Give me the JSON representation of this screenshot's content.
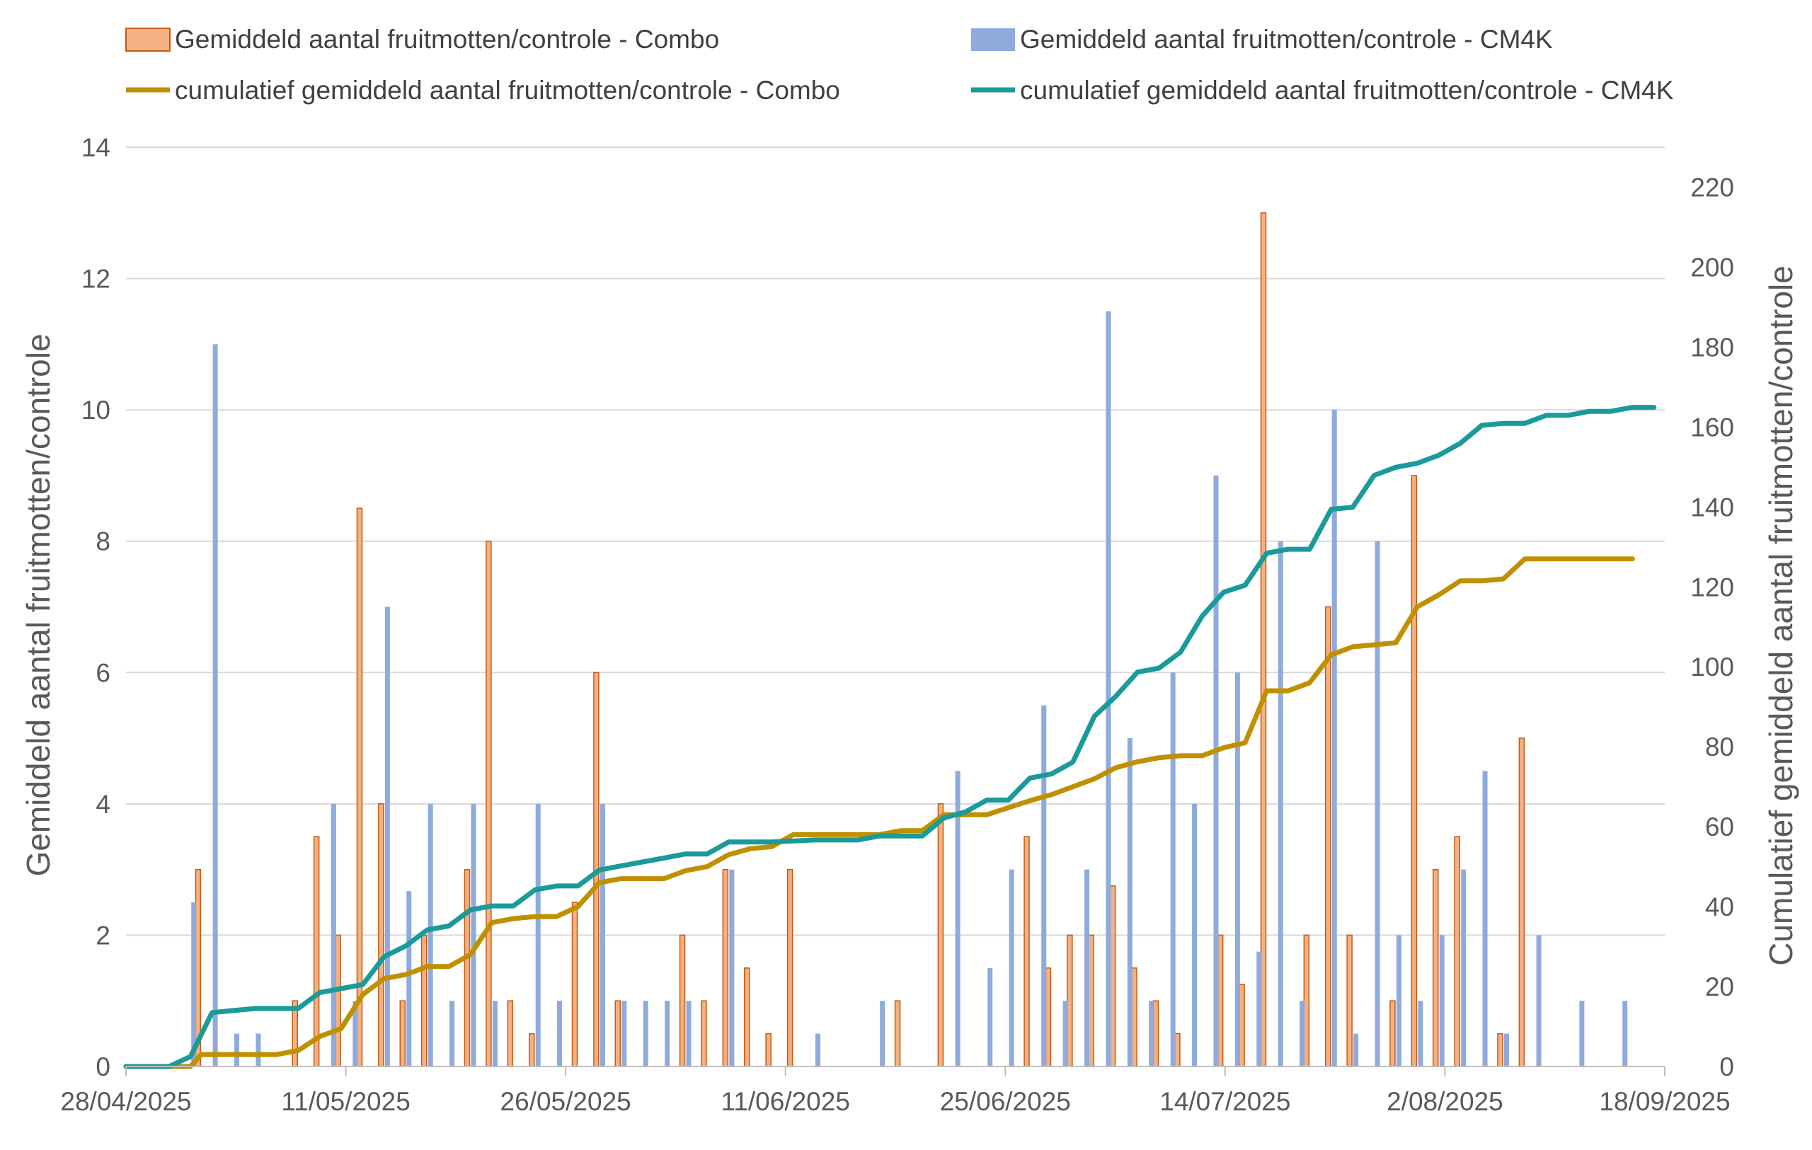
{
  "chart_data": {
    "type": "bar+line",
    "title": "",
    "colors": {
      "combo_bar": "#f4b183",
      "combo_bar_edge": "#c55a11",
      "cm4k_bar": "#8faadc",
      "combo_line": "#bf9000",
      "cm4k_line": "#1a9a9a"
    },
    "legend": {
      "position": "top",
      "items": [
        {
          "key": "combo_bar",
          "label": "Gemiddeld aantal fruitmotten/controle - Combo"
        },
        {
          "key": "cm4k_bar",
          "label": "Gemiddeld aantal fruitmotten/controle - CM4K"
        },
        {
          "key": "combo_line",
          "label": "cumulatief gemiddeld aantal fruitmotten/controle - Combo"
        },
        {
          "key": "cm4k_line",
          "label": "cumulatief gemiddeld aantal fruitmotten/controle - CM4K"
        }
      ]
    },
    "y_left": {
      "label": "Gemiddeld aantal fruitmotten/controle",
      "min": 0,
      "max": 14,
      "ticks": [
        "0",
        "2",
        "4",
        "6",
        "8",
        "10",
        "12",
        "14"
      ]
    },
    "y_right": {
      "label": "Cumulatief gemiddeld aantal fruitmotten/controle",
      "min": 0,
      "max": 230,
      "ticks": [
        "0",
        "20",
        "40",
        "60",
        "80",
        "100",
        "120",
        "140",
        "160",
        "180",
        "200",
        "220"
      ]
    },
    "x_axis": {
      "min_day": 0,
      "max_day": 143,
      "tick_labels": [
        "28/04/2025",
        "11/05/2025",
        "26/05/2025",
        "11/06/2025",
        "25/06/2025",
        "14/07/2025",
        "2/08/2025",
        "18/09/2025"
      ]
    },
    "series": [
      {
        "name": "Gemiddeld aantal fruitmotten/controle - Combo",
        "kind": "bar",
        "points": [
          [
            7,
            3
          ],
          [
            16,
            1
          ],
          [
            18,
            3.5
          ],
          [
            20,
            2
          ],
          [
            22,
            8.5
          ],
          [
            24,
            4
          ],
          [
            26,
            1
          ],
          [
            28,
            2
          ],
          [
            32,
            3
          ],
          [
            34,
            8
          ],
          [
            36,
            1
          ],
          [
            38,
            0.5
          ],
          [
            42,
            2.5
          ],
          [
            44,
            6
          ],
          [
            46,
            1
          ],
          [
            52,
            2
          ],
          [
            54,
            1
          ],
          [
            56,
            3
          ],
          [
            58,
            1.5
          ],
          [
            60,
            0.5
          ],
          [
            62,
            3
          ],
          [
            72,
            1
          ],
          [
            76,
            4
          ],
          [
            84,
            3.5
          ],
          [
            86,
            1.5
          ],
          [
            88,
            2
          ],
          [
            90,
            2
          ],
          [
            92,
            2.75
          ],
          [
            94,
            1.5
          ],
          [
            96,
            1
          ],
          [
            98,
            0.5
          ],
          [
            102,
            2
          ],
          [
            104,
            1.25
          ],
          [
            106,
            13
          ],
          [
            110,
            2
          ],
          [
            112,
            7
          ],
          [
            114,
            2
          ],
          [
            118,
            1
          ],
          [
            120,
            9
          ],
          [
            122,
            3
          ],
          [
            124,
            3.5
          ],
          [
            128,
            0.5
          ],
          [
            130,
            5
          ]
        ]
      },
      {
        "name": "Gemiddeld aantal fruitmotten/controle - CM4K",
        "kind": "bar",
        "points": [
          [
            6,
            2.5
          ],
          [
            8,
            11
          ],
          [
            10,
            0.5
          ],
          [
            12,
            0.5
          ],
          [
            19,
            4
          ],
          [
            21,
            1
          ],
          [
            24,
            7
          ],
          [
            26,
            2.67
          ],
          [
            28,
            4
          ],
          [
            30,
            1
          ],
          [
            32,
            4
          ],
          [
            34,
            1
          ],
          [
            38,
            4
          ],
          [
            40,
            1
          ],
          [
            44,
            4
          ],
          [
            46,
            1
          ],
          [
            48,
            1
          ],
          [
            50,
            1
          ],
          [
            52,
            1
          ],
          [
            56,
            3
          ],
          [
            64,
            0.5
          ],
          [
            70,
            1
          ],
          [
            77,
            4.5
          ],
          [
            80,
            1.5
          ],
          [
            82,
            3
          ],
          [
            85,
            5.5
          ],
          [
            87,
            1
          ],
          [
            89,
            3
          ],
          [
            91,
            11.5
          ],
          [
            93,
            5
          ],
          [
            95,
            1
          ],
          [
            97,
            6
          ],
          [
            99,
            4
          ],
          [
            101,
            9
          ],
          [
            103,
            6
          ],
          [
            105,
            1.75
          ],
          [
            107,
            8
          ],
          [
            109,
            1
          ],
          [
            112,
            10
          ],
          [
            114,
            0.5
          ],
          [
            116,
            8
          ],
          [
            118,
            2
          ],
          [
            120,
            1
          ],
          [
            122,
            2
          ],
          [
            124,
            3
          ],
          [
            126,
            4.5
          ],
          [
            128,
            0.5
          ],
          [
            131,
            2
          ],
          [
            135,
            1
          ],
          [
            139,
            1
          ]
        ]
      },
      {
        "name": "cumulatief gemiddeld aantal fruitmotten/controle - Combo",
        "kind": "line",
        "axis": "right",
        "points": [
          [
            0,
            0
          ],
          [
            4,
            0
          ],
          [
            6,
            0
          ],
          [
            7,
            3
          ],
          [
            9,
            3
          ],
          [
            11,
            3
          ],
          [
            14,
            3
          ],
          [
            16,
            4
          ],
          [
            18,
            7.5
          ],
          [
            20,
            9.5
          ],
          [
            22,
            18
          ],
          [
            24,
            22
          ],
          [
            26,
            23
          ],
          [
            28,
            25
          ],
          [
            30,
            25
          ],
          [
            32,
            28
          ],
          [
            34,
            36
          ],
          [
            36,
            37
          ],
          [
            38,
            37.5
          ],
          [
            40,
            37.5
          ],
          [
            42,
            40
          ],
          [
            44,
            46
          ],
          [
            46,
            47
          ],
          [
            48,
            47
          ],
          [
            50,
            47
          ],
          [
            52,
            49
          ],
          [
            54,
            50
          ],
          [
            56,
            53
          ],
          [
            58,
            54.5
          ],
          [
            60,
            55
          ],
          [
            62,
            58
          ],
          [
            66,
            58
          ],
          [
            70,
            58
          ],
          [
            72,
            59
          ],
          [
            74,
            59
          ],
          [
            76,
            63
          ],
          [
            80,
            63
          ],
          [
            84,
            66.5
          ],
          [
            86,
            68
          ],
          [
            88,
            70
          ],
          [
            90,
            72
          ],
          [
            92,
            74.75
          ],
          [
            94,
            76.25
          ],
          [
            96,
            77.25
          ],
          [
            98,
            77.75
          ],
          [
            100,
            77.75
          ],
          [
            102,
            79.75
          ],
          [
            104,
            81
          ],
          [
            106,
            94
          ],
          [
            108,
            94
          ],
          [
            110,
            96
          ],
          [
            112,
            103
          ],
          [
            114,
            105
          ],
          [
            118,
            106
          ],
          [
            120,
            115
          ],
          [
            122,
            118
          ],
          [
            124,
            121.5
          ],
          [
            126,
            121.5
          ],
          [
            128,
            122
          ],
          [
            130,
            127
          ],
          [
            135,
            127
          ],
          [
            140,
            127
          ]
        ]
      },
      {
        "name": "cumulatief gemiddeld aantal fruitmotten/controle - CM4K",
        "kind": "line",
        "axis": "right",
        "points": [
          [
            0,
            0
          ],
          [
            4,
            0
          ],
          [
            6,
            2.5
          ],
          [
            8,
            13.5
          ],
          [
            10,
            14
          ],
          [
            12,
            14.5
          ],
          [
            14,
            14.5
          ],
          [
            16,
            14.5
          ],
          [
            18,
            18.5
          ],
          [
            20,
            19.5
          ],
          [
            22,
            20.5
          ],
          [
            24,
            27.5
          ],
          [
            26,
            30.17
          ],
          [
            28,
            34.17
          ],
          [
            30,
            35.17
          ],
          [
            32,
            39.17
          ],
          [
            34,
            40.17
          ],
          [
            36,
            40.17
          ],
          [
            38,
            44.17
          ],
          [
            40,
            45.17
          ],
          [
            42,
            45.17
          ],
          [
            44,
            49.17
          ],
          [
            46,
            50.17
          ],
          [
            48,
            51.17
          ],
          [
            50,
            52.17
          ],
          [
            52,
            53.17
          ],
          [
            54,
            53.17
          ],
          [
            56,
            56.17
          ],
          [
            60,
            56.17
          ],
          [
            64,
            56.67
          ],
          [
            68,
            56.67
          ],
          [
            70,
            57.67
          ],
          [
            74,
            57.67
          ],
          [
            76,
            62.17
          ],
          [
            78,
            63.67
          ],
          [
            80,
            66.67
          ],
          [
            82,
            66.67
          ],
          [
            84,
            72.17
          ],
          [
            86,
            73.17
          ],
          [
            88,
            76.17
          ],
          [
            90,
            87.67
          ],
          [
            92,
            92.67
          ],
          [
            94,
            98.67
          ],
          [
            96,
            99.67
          ],
          [
            98,
            103.67
          ],
          [
            100,
            112.67
          ],
          [
            102,
            118.67
          ],
          [
            104,
            120.42
          ],
          [
            106,
            128.42
          ],
          [
            108,
            129.42
          ],
          [
            110,
            129.42
          ],
          [
            112,
            139.42
          ],
          [
            114,
            139.92
          ],
          [
            116,
            147.92
          ],
          [
            118,
            149.92
          ],
          [
            120,
            150.92
          ],
          [
            122,
            152.92
          ],
          [
            124,
            155.92
          ],
          [
            126,
            160.42
          ],
          [
            128,
            160.92
          ],
          [
            130,
            160.92
          ],
          [
            132,
            162.92
          ],
          [
            134,
            162.92
          ],
          [
            136,
            163.92
          ],
          [
            138,
            163.92
          ],
          [
            140,
            164.92
          ],
          [
            142,
            164.92
          ]
        ]
      }
    ]
  }
}
